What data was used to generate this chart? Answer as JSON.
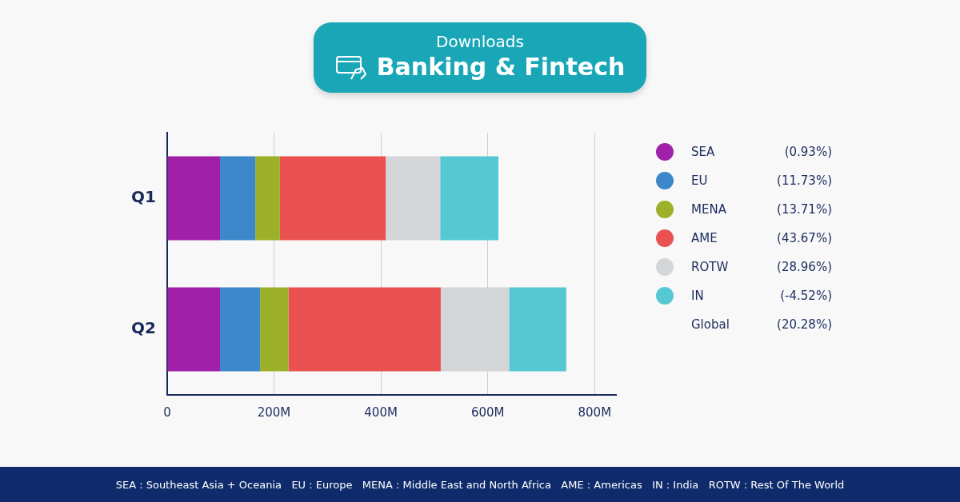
{
  "chart_data": {
    "type": "bar",
    "title": "Downloads",
    "subtitle": "Banking & Fintech",
    "orientation": "horizontal",
    "stacked": true,
    "categories": [
      "Q1",
      "Q2"
    ],
    "series": [
      {
        "name": "SEA",
        "color": "#a020aa",
        "values": [
          99,
          99
        ]
      },
      {
        "name": "EU",
        "color": "#3d87cb",
        "values": [
          66,
          75
        ]
      },
      {
        "name": "MENA",
        "color": "#9db02a",
        "values": [
          46,
          53
        ]
      },
      {
        "name": "AME",
        "color": "#e95251",
        "values": [
          198,
          285
        ]
      },
      {
        "name": "ROTW",
        "color": "#d4d5d7",
        "values": [
          102,
          128
        ]
      },
      {
        "name": "IN",
        "color": "#55c8d4",
        "values": [
          109,
          107
        ]
      }
    ],
    "xlim": [
      0,
      840
    ],
    "xticks": [
      0,
      {
        "value": 200,
        "label": "200M"
      },
      {
        "value": 400,
        "label": "400M"
      },
      {
        "value": 600,
        "label": "600M"
      },
      {
        "value": 800,
        "label": "800M"
      }
    ],
    "grid": "x",
    "legend": "right",
    "annotations": [
      "(0.93%)",
      "(11.73%)",
      "(13.71%)",
      "(43.67%)",
      "(28.96%)",
      "(-4.52%)",
      "Global",
      "(20.28%)",
      "SEA : Southeast Asia + Oceania   EU : Europe   MENA : Middle East and North Africa   AME : Americas   IN : India   ROTW : Rest Of The World"
    ]
  }
}
